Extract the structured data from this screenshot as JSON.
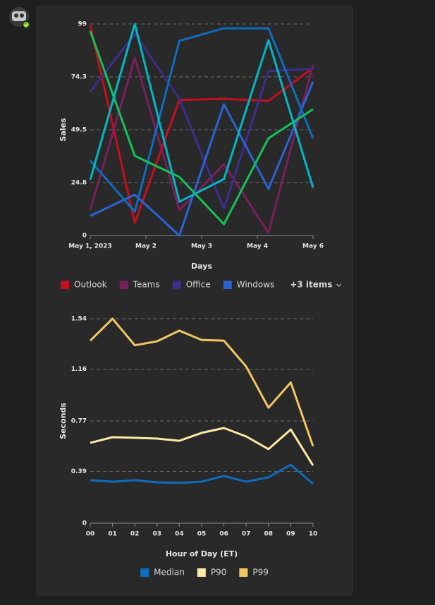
{
  "chart_data": [
    {
      "type": "line",
      "y_label": "Sales",
      "x_label": "Days",
      "x": [
        0,
        1,
        2,
        3,
        4,
        5
      ],
      "xlim": [
        0,
        5
      ],
      "xticks": [
        {
          "value": 0,
          "label": "May 1, 2023"
        },
        {
          "value": 1.25,
          "label": "May 2"
        },
        {
          "value": 2.5,
          "label": "May 3"
        },
        {
          "value": 3.75,
          "label": "May 4"
        },
        {
          "value": 5,
          "label": "May 6"
        }
      ],
      "ylim": [
        0,
        99
      ],
      "yticks": [
        0,
        24.8,
        49.5,
        74.3,
        99
      ],
      "grid": true,
      "legend_overflow": "+3 items",
      "series": [
        {
          "name": "Outlook",
          "color": "#c50f1f",
          "values": [
            98.3,
            5.9,
            63.4,
            64.0,
            63.0,
            78.5
          ]
        },
        {
          "name": "Teams",
          "color": "#7a1f5e",
          "values": [
            11.9,
            83.2,
            11.9,
            33.3,
            1.3,
            79.9
          ]
        },
        {
          "name": "Office",
          "color": "#3b2f8c",
          "values": [
            67.3,
            94.4,
            64.0,
            12.5,
            77.0,
            78.0
          ]
        },
        {
          "name": "Windows",
          "color": "#2a63d4",
          "values": [
            9.2,
            19.1,
            0,
            61.4,
            21.8,
            72.0
          ]
        },
        {
          "color": "#0f6cbd",
          "values": [
            35.0,
            11.2,
            91.1,
            97.0,
            97.0,
            45.5
          ]
        },
        {
          "color": "#13c258",
          "values": [
            95.7,
            37.3,
            27.4,
            5.3,
            45.5,
            59.1
          ]
        },
        {
          "color": "#00b7c3",
          "values": [
            26.1,
            99.0,
            15.8,
            26.4,
            91.4,
            22.4
          ]
        }
      ]
    },
    {
      "type": "line",
      "y_label": "Seconds",
      "x_label": "Hour of Day (ET)",
      "categories": [
        "00",
        "01",
        "02",
        "03",
        "04",
        "05",
        "06",
        "07",
        "08",
        "09",
        "10"
      ],
      "ylim": [
        0,
        1.54
      ],
      "yticks": [
        0,
        0.39,
        0.77,
        1.16,
        1.54
      ],
      "grid": true,
      "series": [
        {
          "name": "Median",
          "color": "#0f6cbd",
          "values": [
            0.324,
            0.313,
            0.324,
            0.308,
            0.303,
            0.313,
            0.356,
            0.313,
            0.345,
            0.441,
            0.297
          ]
        },
        {
          "name": "P90",
          "color": "#fde9a3",
          "values": [
            0.605,
            0.648,
            0.643,
            0.637,
            0.621,
            0.68,
            0.717,
            0.653,
            0.558,
            0.706,
            0.435
          ]
        },
        {
          "name": "P99",
          "color": "#f2c661",
          "values": [
            1.375,
            1.54,
            1.34,
            1.37,
            1.45,
            1.38,
            1.375,
            1.18,
            0.87,
            1.06,
            0.58
          ]
        }
      ]
    }
  ]
}
